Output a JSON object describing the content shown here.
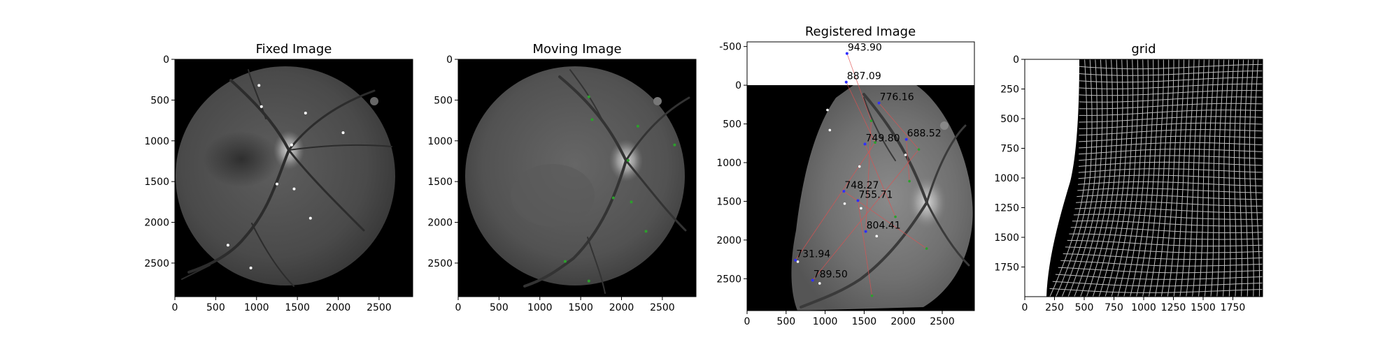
{
  "chart_data": [
    {
      "type": "image",
      "title": "Fixed Image",
      "xlim": [
        0,
        2912
      ],
      "ylim": [
        2912,
        0
      ],
      "xticks": [
        0,
        500,
        1000,
        1500,
        2000,
        2500
      ],
      "yticks": [
        0,
        500,
        1000,
        1500,
        2000,
        2500
      ],
      "landmark_color": "#ffffff",
      "landmarks": [
        [
          1030,
          320
        ],
        [
          1060,
          580
        ],
        [
          1600,
          660
        ],
        [
          2060,
          900
        ],
        [
          1430,
          1050
        ],
        [
          1250,
          1530
        ],
        [
          1460,
          1590
        ],
        [
          1660,
          1950
        ],
        [
          650,
          2280
        ],
        [
          930,
          2560
        ]
      ]
    },
    {
      "type": "image",
      "title": "Moving Image",
      "xlim": [
        0,
        2912
      ],
      "ylim": [
        2912,
        0
      ],
      "xticks": [
        0,
        500,
        1000,
        1500,
        2000,
        2500
      ],
      "yticks": [
        0,
        500,
        1000,
        1500,
        2000,
        2500
      ],
      "landmark_color": "#2ca02c",
      "landmarks": [
        [
          1600,
          460
        ],
        [
          1640,
          740
        ],
        [
          2200,
          820
        ],
        [
          2650,
          1050
        ],
        [
          2080,
          1240
        ],
        [
          1900,
          1700
        ],
        [
          2120,
          1750
        ],
        [
          2300,
          2110
        ],
        [
          1310,
          2480
        ],
        [
          1600,
          2720
        ]
      ]
    },
    {
      "type": "image",
      "title": "Registered Image",
      "xlim": [
        0,
        2912
      ],
      "ylim": [
        2912,
        -560
      ],
      "xticks": [
        0,
        500,
        1000,
        1500,
        2000,
        2500
      ],
      "yticks": [
        -500,
        0,
        500,
        1000,
        1500,
        2000,
        2500
      ],
      "annotations": [
        {
          "label": "943.90",
          "x": 1280,
          "y": -410
        },
        {
          "label": "887.09",
          "x": 1270,
          "y": -40
        },
        {
          "label": "776.16",
          "x": 1690,
          "y": 230
        },
        {
          "label": "688.52",
          "x": 2040,
          "y": 700
        },
        {
          "label": "749.80",
          "x": 1510,
          "y": 760
        },
        {
          "label": "748.27",
          "x": 1240,
          "y": 1370
        },
        {
          "label": "755.71",
          "x": 1420,
          "y": 1490
        },
        {
          "label": "804.41",
          "x": 1520,
          "y": 1890
        },
        {
          "label": "731.94",
          "x": 620,
          "y": 2260
        },
        {
          "label": "789.50",
          "x": 840,
          "y": 2520
        }
      ],
      "white_points": [
        [
          1030,
          320
        ],
        [
          1060,
          580
        ],
        [
          1440,
          1050
        ],
        [
          1250,
          1530
        ],
        [
          1460,
          1590
        ],
        [
          2030,
          900
        ],
        [
          1660,
          1950
        ],
        [
          650,
          2280
        ],
        [
          930,
          2560
        ]
      ],
      "green_points": [
        [
          1590,
          460
        ],
        [
          1640,
          740
        ],
        [
          2200,
          830
        ],
        [
          2080,
          1240
        ],
        [
          1900,
          1700
        ],
        [
          2300,
          2110
        ],
        [
          1600,
          2720
        ]
      ]
    },
    {
      "type": "image",
      "title": "grid",
      "xlim": [
        0,
        2000
      ],
      "ylim": [
        2000,
        0
      ],
      "xticks": [
        0,
        250,
        500,
        750,
        1000,
        1250,
        1500,
        1750
      ],
      "yticks": [
        0,
        250,
        500,
        750,
        1000,
        1250,
        1500,
        1750
      ]
    }
  ]
}
